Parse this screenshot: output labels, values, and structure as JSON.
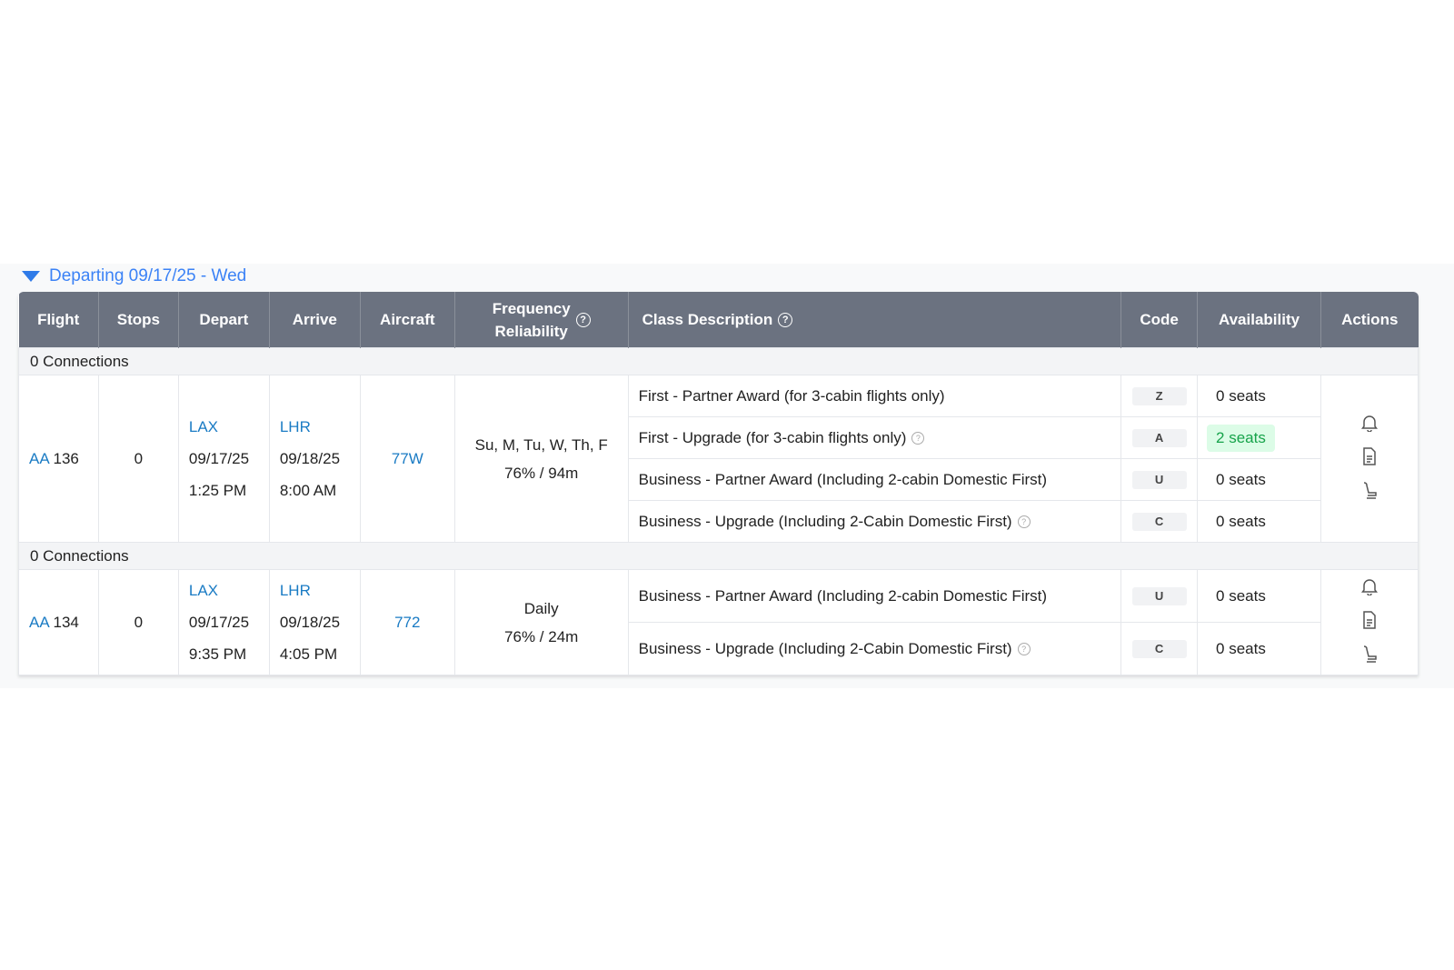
{
  "section": {
    "title": "Departing 09/17/25 - Wed",
    "icon": "caret-down-icon"
  },
  "columns": [
    "Flight",
    "Stops",
    "Depart",
    "Arrive",
    "Aircraft",
    "Frequency Reliability",
    "Class Description",
    "Code",
    "Availability",
    "Actions"
  ],
  "colors": {
    "header_bg": "#6b7280",
    "link": "#1a7bc4",
    "available_bg": "#dcfce7",
    "available_text": "#16a34a"
  },
  "flights": [
    {
      "connections": "0 Connections",
      "carrier": "AA",
      "number": "136",
      "stops": "0",
      "depart": {
        "airport": "LAX",
        "date": "09/17/25",
        "time": "1:25 PM"
      },
      "arrive": {
        "airport": "LHR",
        "date": "09/18/25",
        "time": "8:00 AM"
      },
      "aircraft": "77W",
      "frequency": "Su, M, Tu, W, Th, F",
      "reliability": "76% / 94m",
      "classes": [
        {
          "desc": "First - Partner Award (for 3-cabin flights only)",
          "help": false,
          "code": "Z",
          "availability": "0 seats",
          "available": false
        },
        {
          "desc": "First - Upgrade (for 3-cabin flights only)",
          "help": true,
          "code": "A",
          "availability": "2 seats",
          "available": true
        },
        {
          "desc": "Business - Partner Award (Including 2-cabin Domestic First)",
          "help": false,
          "code": "U",
          "availability": "0 seats",
          "available": false
        },
        {
          "desc": "Business - Upgrade (Including 2-Cabin Domestic First)",
          "help": true,
          "code": "C",
          "availability": "0 seats",
          "available": false
        }
      ]
    },
    {
      "connections": "0 Connections",
      "carrier": "AA",
      "number": "134",
      "stops": "0",
      "depart": {
        "airport": "LAX",
        "date": "09/17/25",
        "time": "9:35 PM"
      },
      "arrive": {
        "airport": "LHR",
        "date": "09/18/25",
        "time": "4:05 PM"
      },
      "aircraft": "772",
      "frequency": "Daily",
      "reliability": "76% / 24m",
      "classes": [
        {
          "desc": "Business - Partner Award (Including 2-cabin Domestic First)",
          "help": false,
          "code": "U",
          "availability": "0 seats",
          "available": false
        },
        {
          "desc": "Business - Upgrade (Including 2-Cabin Domestic First)",
          "help": true,
          "code": "C",
          "availability": "0 seats",
          "available": false
        }
      ]
    }
  ],
  "actions": [
    {
      "icon": "bell-icon"
    },
    {
      "icon": "document-icon"
    },
    {
      "icon": "seat-icon"
    }
  ]
}
